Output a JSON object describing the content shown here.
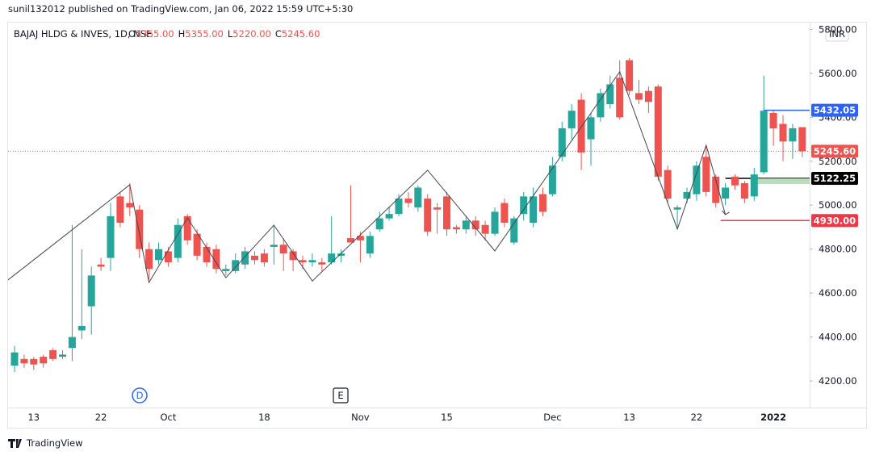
{
  "header": "sunil132012 published on TradingView.com, Jan 06, 2022 15:59 UTC+5:30",
  "footer": "TradingView",
  "chart_data": {
    "type": "candlestick",
    "symbol": "BAJAJ HLDG & INVES, 1D, NSE",
    "ohlc_legend": [
      {
        "key": "O",
        "text": "5355.00"
      },
      {
        "key": "H",
        "text": "5355.00"
      },
      {
        "key": "L",
        "text": "5220.00"
      },
      {
        "key": "C",
        "text": "5245.60"
      }
    ],
    "currency": "INR",
    "categories": [
      null,
      null,
      "13",
      null,
      null,
      null,
      null,
      null,
      null,
      "22",
      null,
      null,
      null,
      null,
      null,
      null,
      "Oct",
      null,
      null,
      null,
      null,
      null,
      null,
      null,
      null,
      null,
      "18",
      null,
      null,
      null,
      null,
      null,
      null,
      null,
      null,
      null,
      "Nov",
      null,
      null,
      null,
      null,
      null,
      null,
      null,
      null,
      "15",
      null,
      null,
      null,
      null,
      null,
      null,
      null,
      null,
      null,
      null,
      "Dec",
      null,
      null,
      null,
      null,
      null,
      null,
      null,
      "13",
      null,
      null,
      null,
      null,
      null,
      null,
      "22",
      null,
      null,
      null,
      null,
      null,
      null,
      null,
      "2022",
      null,
      null,
      null
    ],
    "open": [
      4270,
      4300,
      4300,
      4310,
      4340,
      4310,
      4350,
      4430,
      4540,
      4730,
      4760,
      5040,
      5010,
      4980,
      4800,
      4750,
      4790,
      4760,
      4950,
      4870,
      4810,
      4800,
      4700,
      4700,
      4730,
      4770,
      4780,
      4810,
      4820,
      4790,
      4750,
      4740,
      4740,
      4740,
      4770,
      4850,
      4860,
      4780,
      4890,
      4940,
      4960,
      5030,
      4990,
      5030,
      4990,
      5040,
      4900,
      4890,
      4930,
      4910,
      4870,
      5010,
      4830,
      4960,
      4920,
      5050,
      5050,
      5220,
      5350,
      5480,
      5300,
      5400,
      5460,
      5580,
      5660,
      5510,
      5520,
      5540,
      5160,
      4980,
      5030,
      5050,
      5220,
      5130,
      5030,
      5130,
      5100,
      5040,
      5150,
      5420,
      5370,
      5290,
      5355
    ],
    "high": [
      4360,
      4320,
      4310,
      4320,
      4350,
      4340,
      4910,
      4800,
      4720,
      4760,
      5010,
      5060,
      5100,
      5000,
      4830,
      4830,
      4810,
      4940,
      4960,
      4890,
      4830,
      4820,
      4730,
      4780,
      4810,
      4790,
      4800,
      4910,
      4850,
      4800,
      4770,
      4780,
      4760,
      4950,
      4800,
      5090,
      4880,
      4880,
      4970,
      4990,
      5050,
      5060,
      5090,
      5050,
      5010,
      5060,
      4910,
      4950,
      4950,
      4930,
      4990,
      5030,
      4950,
      5060,
      5080,
      5080,
      5220,
      5380,
      5460,
      5510,
      5420,
      5530,
      5590,
      5660,
      5670,
      5570,
      5540,
      5550,
      5180,
      5000,
      5080,
      5200,
      5270,
      5140,
      5100,
      5140,
      5110,
      5170,
      5590,
      5430,
      5410,
      5370,
      5355
    ],
    "low": [
      4240,
      4260,
      4250,
      4260,
      4290,
      4300,
      4290,
      4390,
      4410,
      4700,
      4700,
      4900,
      4950,
      4760,
      4660,
      4730,
      4720,
      4740,
      4820,
      4750,
      4720,
      4690,
      4680,
      4690,
      4710,
      4730,
      4720,
      4730,
      4700,
      4700,
      4710,
      4720,
      4700,
      4730,
      4740,
      4830,
      4740,
      4760,
      4880,
      4930,
      4950,
      4990,
      4970,
      4860,
      4870,
      4860,
      4870,
      4870,
      4860,
      4840,
      4860,
      4900,
      4820,
      4930,
      4900,
      4950,
      5040,
      5200,
      5300,
      5160,
      5180,
      5380,
      5440,
      5390,
      5500,
      5460,
      5420,
      5110,
      5010,
      4900,
      5010,
      5020,
      5040,
      4990,
      5000,
      5070,
      5010,
      5020,
      5140,
      5270,
      5200,
      5210,
      5220
    ],
    "close": [
      4330,
      4280,
      4275,
      4280,
      4300,
      4320,
      4400,
      4450,
      4680,
      4720,
      4950,
      4920,
      4990,
      4800,
      4710,
      4800,
      4740,
      4910,
      4840,
      4770,
      4740,
      4710,
      4710,
      4750,
      4790,
      4750,
      4740,
      4820,
      4780,
      4750,
      4740,
      4750,
      4730,
      4780,
      4780,
      4830,
      4840,
      4860,
      4940,
      4960,
      5030,
      5010,
      5080,
      4880,
      4980,
      4890,
      4890,
      4930,
      4890,
      4870,
      4970,
      4920,
      4940,
      5040,
      5040,
      4970,
      5180,
      5350,
      5430,
      5240,
      5400,
      5510,
      5550,
      5400,
      5520,
      5480,
      5470,
      5130,
      5030,
      4990,
      5060,
      5180,
      5060,
      5010,
      5080,
      5090,
      5030,
      5140,
      5430,
      5350,
      5290,
      5350,
      5245.6
    ],
    "up_color": "#26a69a",
    "down_color": "#ef5350",
    "ylim": [
      4079,
      5831
    ],
    "yticks": [
      {
        "value": 4200,
        "label": "4200.00"
      },
      {
        "value": 4400,
        "label": "4400.00"
      },
      {
        "value": 4600,
        "label": "4600.00"
      },
      {
        "value": 4800,
        "label": "4800.00"
      },
      {
        "value": 5000,
        "label": "5000.00"
      },
      {
        "value": 5200,
        "label": "5200.00"
      },
      {
        "value": 5400,
        "label": "5400.00"
      },
      {
        "value": 5600,
        "label": "5600.00"
      },
      {
        "value": 5800,
        "label": "5800.00"
      }
    ],
    "grid": false,
    "levels": [
      {
        "value": 5432.05,
        "label": "5432.05",
        "color": "#2962ff",
        "text_color": "#ffffff"
      },
      {
        "value": 5245.6,
        "label": "5245.60",
        "color": "#ef5350",
        "text_color": "#ffffff"
      },
      {
        "value": 5122.25,
        "label": "5122.25",
        "color": "#000000",
        "text_color": "#ffffff"
      },
      {
        "value": 4930,
        "label": "4930.00",
        "color": "#f23645",
        "text_color": "#ffffff"
      }
    ],
    "zigzag": {
      "x": [
        -0.67,
        12,
        14,
        18,
        22,
        27,
        31,
        43,
        50,
        63,
        69,
        72,
        74
      ],
      "values": [
        4660,
        5093,
        4648,
        4942,
        4670,
        4909,
        4655,
        5159,
        4792,
        5607,
        4891,
        5273,
        4957
      ]
    },
    "events": [
      "D",
      "E"
    ]
  }
}
